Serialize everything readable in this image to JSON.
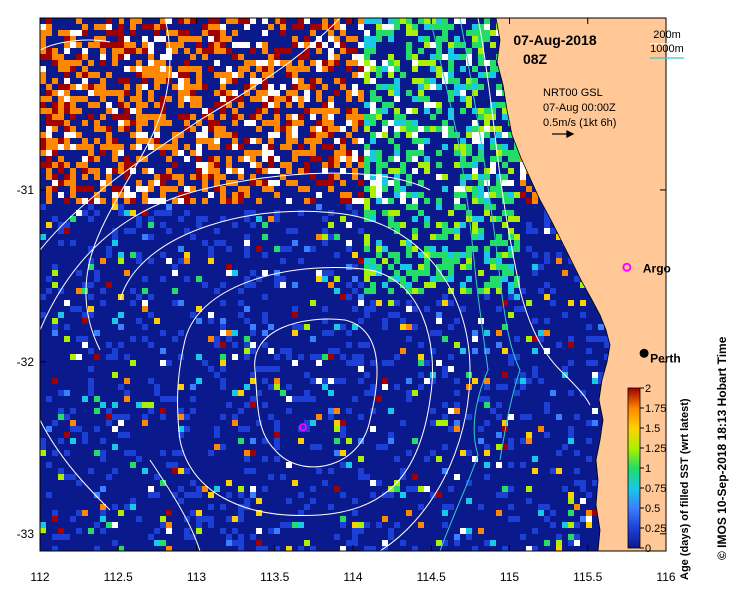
{
  "map": {
    "date_label": "07-Aug-2018",
    "time_label": "08Z",
    "depth_legend": [
      {
        "label": "200m",
        "color": "#ffffff"
      },
      {
        "label": "1000m",
        "color": "#33cccc"
      }
    ],
    "current_info": {
      "line1": "NRT00 GSL",
      "line2": "07-Aug 00:00Z",
      "line3": "0.5m/s (1kt 6h)"
    },
    "places": [
      {
        "name": "Argo",
        "lon": 115.75,
        "lat": -31.45
      },
      {
        "name": "Perth",
        "lon": 115.86,
        "lat": -31.95
      }
    ],
    "argo_float_2": {
      "lon": 113.68,
      "lat": -32.38
    },
    "x_ticks": [
      "112",
      "112.5",
      "113",
      "113.5",
      "114",
      "114.5",
      "115",
      "115.5",
      "116"
    ],
    "y_ticks": [
      "-31",
      "-32",
      "-33"
    ],
    "x_tick_values": [
      112,
      112.5,
      113,
      113.5,
      114,
      114.5,
      115,
      115.5,
      116
    ],
    "y_tick_values": [
      -31,
      -32,
      -33
    ],
    "lon_range": [
      112,
      116
    ],
    "lat_range": [
      -33.1,
      -30.0
    ],
    "colorbar": {
      "title": "Age (days) of filled SST (wrt latest)",
      "ticks": [
        "0",
        "0.25",
        "0.5",
        "0.75",
        "1",
        "1.25",
        "1.5",
        "1.75",
        "2"
      ],
      "tick_values": [
        0,
        0.25,
        0.5,
        0.75,
        1,
        1.25,
        1.5,
        1.75,
        2
      ],
      "range": [
        0,
        2
      ]
    },
    "credit": "© IMOS 10-Sep-2018 18:13 Hobart Time",
    "colors": {
      "ocean_deep": "#0a1a8c",
      "land": "#ffc896",
      "contour": "#ffffff",
      "isobath_1000": "#33cccc"
    }
  }
}
